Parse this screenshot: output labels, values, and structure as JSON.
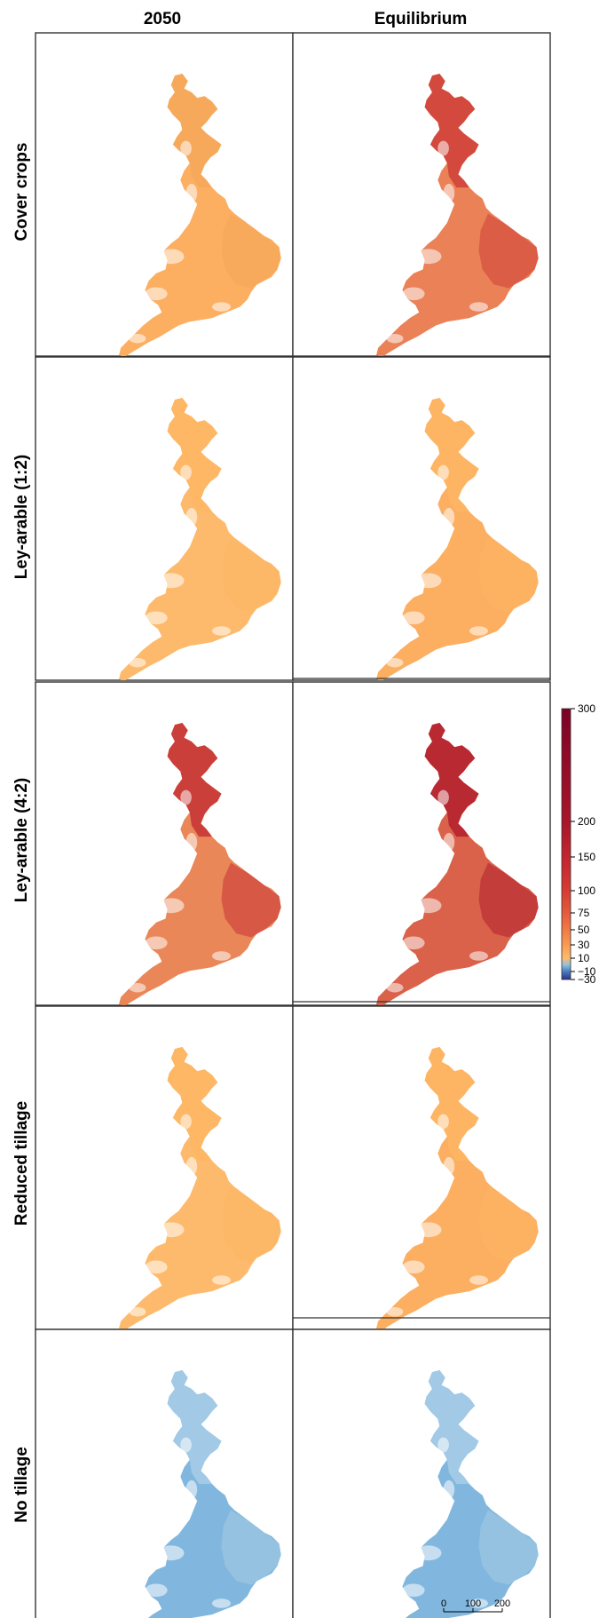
{
  "columns": [
    "2050",
    "Equilibrium"
  ],
  "rows": [
    "Cover crops",
    "Ley-arable (1:2)",
    "Ley-arable (4:2)",
    "Reduced tillage",
    "No tillage"
  ],
  "panels": [
    [
      {
        "fill": "#fcaa58",
        "accent": "#f4a85a"
      },
      {
        "fill": "#e97a4e",
        "accent": "#cf3f38"
      }
    ],
    [
      {
        "fill": "#fdb664",
        "accent": "#fdb664"
      },
      {
        "fill": "#fcaa58",
        "accent": "#fdb664"
      }
    ],
    [
      {
        "fill": "#e9814f",
        "accent": "#c63235"
      },
      {
        "fill": "#d85a40",
        "accent": "#b1202d"
      }
    ],
    [
      {
        "fill": "#fdb664",
        "accent": "#fdb664"
      },
      {
        "fill": "#fcaa58",
        "accent": "#fdb664"
      }
    ],
    [
      {
        "fill": "#7ab3dc",
        "accent": "#a8cce6"
      },
      {
        "fill": "#7ab3dc",
        "accent": "#a8cce6"
      }
    ]
  ],
  "legend": {
    "ticks": [
      300,
      200,
      150,
      100,
      75,
      50,
      30,
      10,
      -10,
      -30
    ],
    "tick_labels": [
      "300",
      "200",
      "150",
      "100",
      "75",
      "50",
      "30",
      "10",
      "−10",
      "−30"
    ],
    "stops": [
      {
        "value": -30,
        "color": "#2b2f8e"
      },
      {
        "value": -10,
        "color": "#4a7bbd"
      },
      {
        "value": 0,
        "color": "#91c2e0"
      },
      {
        "value": 10,
        "color": "#fdbb6b"
      },
      {
        "value": 30,
        "color": "#f99b52"
      },
      {
        "value": 50,
        "color": "#f27a45"
      },
      {
        "value": 75,
        "color": "#e65a3c"
      },
      {
        "value": 100,
        "color": "#d63c35"
      },
      {
        "value": 150,
        "color": "#c22530"
      },
      {
        "value": 200,
        "color": "#a8152a"
      },
      {
        "value": 300,
        "color": "#7d0225"
      }
    ]
  },
  "scale_bar": {
    "labels": [
      "0",
      "100",
      "200"
    ]
  }
}
